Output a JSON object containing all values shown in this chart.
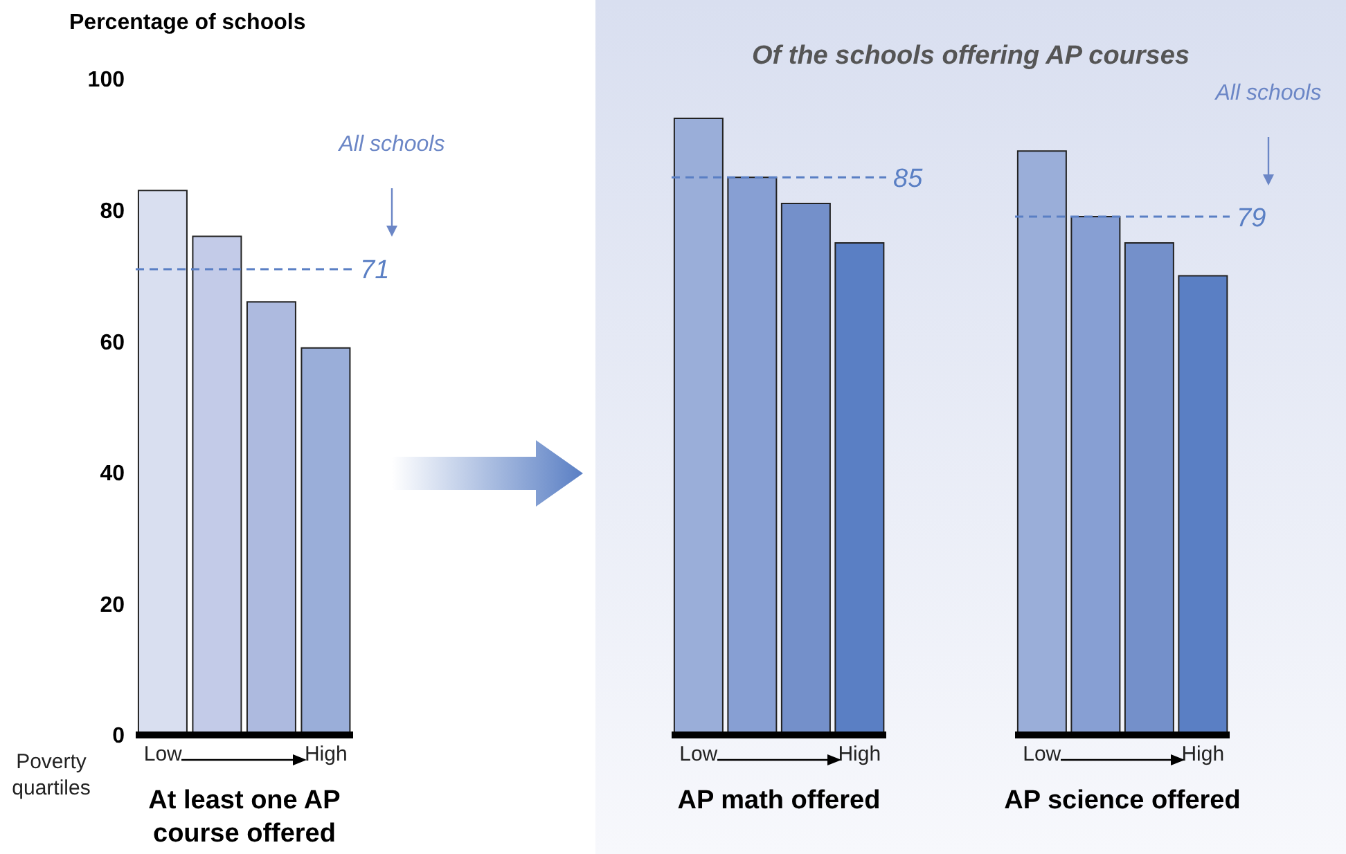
{
  "chart_data": [
    {
      "type": "bar",
      "title": "At least one AP course offered",
      "ylabel": "Percentage of schools",
      "xlabel": "Poverty quartiles",
      "categories": [
        "Low",
        null,
        null,
        "High"
      ],
      "values": [
        83,
        76,
        66,
        59
      ],
      "colors": [
        "#d9dff0",
        "#c3cbe8",
        "#adbadf",
        "#9aaed9"
      ],
      "ylim": [
        0,
        100
      ],
      "yticks": [
        0,
        20,
        40,
        60,
        80,
        100
      ],
      "ref_lines": [
        {
          "axis": "y",
          "value": 71,
          "label": "71",
          "color": "#5a7fc4",
          "line_style": "dashed"
        }
      ],
      "annotations": [
        "All schools"
      ]
    },
    {
      "type": "bar",
      "title": "AP math offered",
      "categories": [
        "Low",
        null,
        null,
        "High"
      ],
      "values": [
        94,
        85,
        81,
        75
      ],
      "colors": [
        "#9aaed9",
        "#879fd3",
        "#7490ca",
        "#5a7fc4"
      ],
      "ylim": [
        0,
        100
      ],
      "yticks": [
        0,
        20,
        40,
        60,
        80,
        100
      ],
      "tick_labels": "x",
      "ref_lines": [
        {
          "axis": "y",
          "value": 85,
          "label": "85",
          "color": "#5a7fc4",
          "line_style": "dashed"
        }
      ],
      "subtitle": "Of the schools offering AP courses"
    },
    {
      "type": "bar",
      "title": "AP science offered",
      "categories": [
        "Low",
        null,
        null,
        "High"
      ],
      "values": [
        89,
        79,
        75,
        70
      ],
      "colors": [
        "#9aaed9",
        "#879fd3",
        "#7490ca",
        "#5a7fc4"
      ],
      "ylim": [
        0,
        100
      ],
      "yticks": [
        0,
        20,
        40,
        60,
        80,
        100
      ],
      "tick_labels": "x",
      "ref_lines": [
        {
          "axis": "y",
          "value": 79,
          "label": "79",
          "color": "#5a7fc4",
          "line_style": "dashed"
        }
      ],
      "annotations": [
        "All schools"
      ]
    }
  ]
}
